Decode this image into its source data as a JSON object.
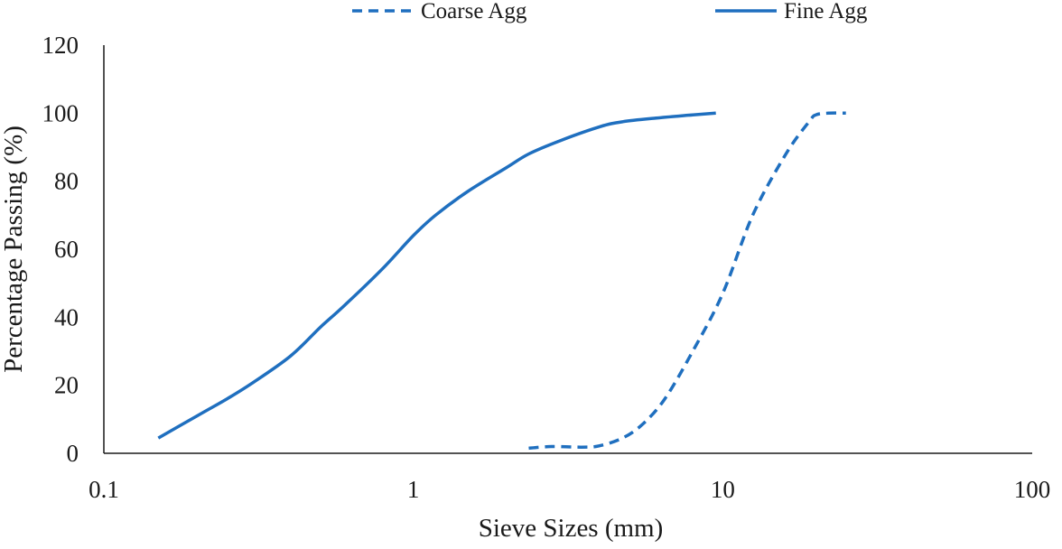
{
  "chart_data": {
    "type": "line",
    "title": "",
    "xlabel": "Sieve Sizes (mm)",
    "ylabel": "Percentage Passing (%)",
    "xscale": "log",
    "xlim": [
      0.1,
      100
    ],
    "ylim": [
      0,
      120
    ],
    "xticks": [
      0.1,
      1,
      10,
      100
    ],
    "xtick_labels": [
      "0.1",
      "1",
      "10",
      "100"
    ],
    "yticks": [
      0,
      20,
      40,
      60,
      80,
      100,
      120
    ],
    "ytick_labels": [
      "0",
      "20",
      "40",
      "60",
      "80",
      "100",
      "120"
    ],
    "grid": false,
    "legend_position": "top",
    "series": [
      {
        "name": "Coarse Agg",
        "style": "dashed",
        "color": "#1f6fbf",
        "x": [
          2.36,
          2.8,
          3.5,
          4.0,
          4.75,
          5.5,
          6.5,
          8,
          10,
          12.5,
          16,
          19,
          20,
          22,
          25
        ],
        "y": [
          1.5,
          2,
          1.8,
          2.2,
          4.5,
          8.5,
          16,
          30,
          47,
          70,
          88,
          97.5,
          99.5,
          100,
          100
        ]
      },
      {
        "name": "Fine Agg",
        "style": "solid",
        "color": "#1f6fbf",
        "x": [
          0.15,
          0.2,
          0.25,
          0.3,
          0.4,
          0.5,
          0.6,
          0.8,
          1.0,
          1.18,
          1.5,
          2.0,
          2.36,
          3.0,
          4.0,
          4.75,
          6,
          8,
          9.5
        ],
        "y": [
          4.5,
          11,
          16,
          20.5,
          28.5,
          37,
          43.5,
          54.5,
          64,
          70,
          77,
          84,
          88,
          92,
          96,
          97.5,
          98.5,
          99.5,
          100
        ]
      }
    ]
  }
}
